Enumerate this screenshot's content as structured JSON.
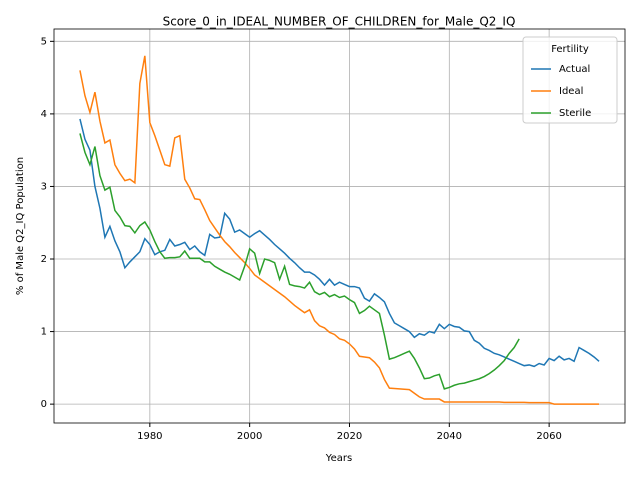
{
  "chart_data": {
    "type": "line",
    "title": "Score_0_in_IDEAL_NUMBER_OF_CHILDREN_for_Male_Q2_IQ",
    "x_label": "Years",
    "y_label": "% of Male Q2_IQ Population",
    "legend_title": "Fertility",
    "legend_position": "upper right",
    "grid": true,
    "xlim": [
      1960.8,
      2075.2
    ],
    "ylim": [
      -0.26,
      5.17
    ],
    "xticks": [
      1980,
      2000,
      2020,
      2040,
      2060
    ],
    "yticks": [
      0,
      1,
      2,
      3,
      4,
      5
    ],
    "x": [
      1966,
      1967,
      1968,
      1969,
      1970,
      1971,
      1972,
      1973,
      1974,
      1975,
      1976,
      1977,
      1978,
      1979,
      1980,
      1981,
      1982,
      1983,
      1984,
      1985,
      1986,
      1987,
      1988,
      1989,
      1990,
      1991,
      1992,
      1993,
      1994,
      1995,
      1996,
      1997,
      1998,
      1999,
      2000,
      2001,
      2002,
      2003,
      2004,
      2005,
      2006,
      2007,
      2008,
      2009,
      2010,
      2011,
      2012,
      2013,
      2014,
      2015,
      2016,
      2017,
      2018,
      2019,
      2020,
      2021,
      2022,
      2023,
      2024,
      2025,
      2026,
      2027,
      2028,
      2029,
      2030,
      2031,
      2032,
      2033,
      2034,
      2035,
      2036,
      2037,
      2038,
      2039,
      2040,
      2041,
      2042,
      2043,
      2044,
      2045,
      2046,
      2047,
      2048,
      2049,
      2050,
      2051,
      2052,
      2053,
      2054,
      2055,
      2056,
      2057,
      2058,
      2059,
      2060,
      2061,
      2062,
      2063,
      2064,
      2065,
      2066,
      2067,
      2068,
      2069,
      2070
    ],
    "series": [
      {
        "name": "Actual",
        "color": "#1f77b4",
        "values": [
          3.93,
          3.65,
          3.5,
          3.0,
          2.7,
          2.3,
          2.45,
          2.25,
          2.1,
          1.88,
          1.96,
          2.03,
          2.1,
          2.28,
          2.2,
          2.06,
          2.1,
          2.12,
          2.27,
          2.18,
          2.2,
          2.23,
          2.13,
          2.18,
          2.1,
          2.05,
          2.34,
          2.29,
          2.3,
          2.63,
          2.55,
          2.37,
          2.4,
          2.35,
          2.3,
          2.35,
          2.39,
          2.33,
          2.27,
          2.2,
          2.14,
          2.08,
          2.01,
          1.95,
          1.88,
          1.82,
          1.82,
          1.78,
          1.72,
          1.64,
          1.72,
          1.64,
          1.68,
          1.65,
          1.62,
          1.62,
          1.6,
          1.46,
          1.42,
          1.52,
          1.47,
          1.41,
          1.25,
          1.12,
          1.08,
          1.04,
          1.0,
          0.92,
          0.97,
          0.95,
          1.0,
          0.98,
          1.1,
          1.04,
          1.1,
          1.07,
          1.06,
          1.01,
          1.0,
          0.88,
          0.84,
          0.77,
          0.74,
          0.7,
          0.68,
          0.65,
          0.62,
          0.59,
          0.56,
          0.53,
          0.54,
          0.52,
          0.56,
          0.54,
          0.63,
          0.6,
          0.66,
          0.61,
          0.63,
          0.59,
          0.78,
          0.74,
          0.7,
          0.65,
          0.59
        ]
      },
      {
        "name": "Ideal",
        "color": "#ff7f0e",
        "values": [
          4.6,
          4.25,
          4.02,
          4.3,
          3.9,
          3.6,
          3.64,
          3.3,
          3.18,
          3.08,
          3.1,
          3.05,
          4.42,
          4.8,
          3.88,
          3.7,
          3.5,
          3.3,
          3.28,
          3.67,
          3.7,
          3.1,
          2.98,
          2.83,
          2.82,
          2.68,
          2.53,
          2.43,
          2.33,
          2.24,
          2.17,
          2.09,
          2.02,
          1.95,
          1.87,
          1.78,
          1.73,
          1.68,
          1.63,
          1.58,
          1.53,
          1.48,
          1.42,
          1.36,
          1.31,
          1.26,
          1.3,
          1.15,
          1.08,
          1.05,
          0.99,
          0.96,
          0.9,
          0.88,
          0.83,
          0.76,
          0.66,
          0.65,
          0.64,
          0.58,
          0.5,
          0.34,
          0.22,
          0.215,
          0.21,
          0.205,
          0.2,
          0.15,
          0.1,
          0.07,
          0.07,
          0.07,
          0.07,
          0.03,
          0.03,
          0.03,
          0.03,
          0.03,
          0.03,
          0.03,
          0.03,
          0.03,
          0.03,
          0.03,
          0.03,
          0.025,
          0.025,
          0.025,
          0.025,
          0.025,
          0.02,
          0.02,
          0.02,
          0.02,
          0.02,
          0,
          0,
          0,
          0,
          0,
          0,
          0,
          0,
          0,
          0
        ]
      },
      {
        "name": "Sterile",
        "color": "#2ca02c",
        "values": [
          3.73,
          3.47,
          3.3,
          3.55,
          3.15,
          2.95,
          2.99,
          2.67,
          2.58,
          2.46,
          2.45,
          2.36,
          2.46,
          2.51,
          2.4,
          2.24,
          2.1,
          2.01,
          2.02,
          2.02,
          2.03,
          2.11,
          2.01,
          2.01,
          2.01,
          1.96,
          1.96,
          1.9,
          1.86,
          1.82,
          1.79,
          1.75,
          1.71,
          1.9,
          2.14,
          2.08,
          1.8,
          2.0,
          1.98,
          1.95,
          1.72,
          1.9,
          1.65,
          1.63,
          1.62,
          1.6,
          1.68,
          1.55,
          1.51,
          1.54,
          1.48,
          1.51,
          1.47,
          1.49,
          1.44,
          1.4,
          1.25,
          1.29,
          1.35,
          1.3,
          1.25,
          0.95,
          0.62,
          0.64,
          0.67,
          0.7,
          0.73,
          0.63,
          0.5,
          0.35,
          0.36,
          0.39,
          0.41,
          0.21,
          0.23,
          0.26,
          0.28,
          0.29,
          0.31,
          0.33,
          0.35,
          0.38,
          0.42,
          0.47,
          0.53,
          0.6,
          0.7,
          0.78,
          0.9,
          null,
          null,
          null,
          null,
          null,
          null,
          null,
          null,
          null,
          null,
          null,
          null,
          null,
          null,
          null,
          null
        ]
      }
    ]
  }
}
